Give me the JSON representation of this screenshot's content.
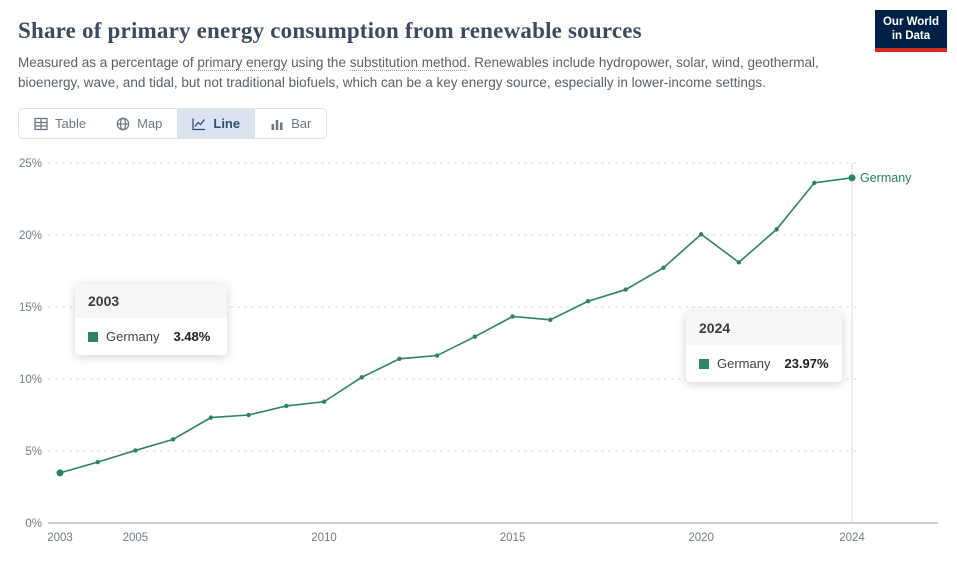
{
  "header": {
    "title": "Share of primary energy consumption from renewable sources",
    "subtitle": {
      "part1": "Measured as a percentage of ",
      "link1": "primary energy",
      "part2": " using the ",
      "link2": "substitution method",
      "part3": ". Renewables include hydropower, solar, wind, geothermal, bioenergy, wave, and tidal, but not traditional biofuels, which can be a key energy source, especially in lower-income settings."
    },
    "logo": {
      "line1": "Our World",
      "line2": "in Data",
      "bg_color": "#002147",
      "accent_color": "#d42b21"
    }
  },
  "tabs": {
    "items": [
      {
        "label": "Table",
        "icon": "table-icon",
        "active": false
      },
      {
        "label": "Map",
        "icon": "globe-icon",
        "active": false
      },
      {
        "label": "Line",
        "icon": "line-chart-icon",
        "active": true
      },
      {
        "label": "Bar",
        "icon": "bar-chart-icon",
        "active": false
      }
    ]
  },
  "chart_data": {
    "type": "line",
    "title": "Share of primary energy consumption from renewable sources",
    "xlabel": "",
    "ylabel": "",
    "xlim": [
      2003,
      2024
    ],
    "ylim": [
      0,
      25
    ],
    "x_ticks": [
      2003,
      2005,
      2010,
      2015,
      2020,
      2024
    ],
    "y_ticks": [
      0,
      5,
      10,
      15,
      20,
      25
    ],
    "y_tick_suffix": "%",
    "grid": "dashed horizontal",
    "legend_position": "end-of-line",
    "series": [
      {
        "name": "Germany",
        "color": "#2c8465",
        "x": [
          2003,
          2004,
          2005,
          2006,
          2007,
          2008,
          2009,
          2010,
          2011,
          2012,
          2013,
          2014,
          2015,
          2016,
          2017,
          2018,
          2019,
          2020,
          2021,
          2022,
          2023,
          2024
        ],
        "values": [
          3.48,
          4.23,
          5.04,
          5.81,
          7.32,
          7.5,
          8.13,
          8.42,
          10.12,
          11.4,
          11.63,
          12.94,
          14.34,
          14.11,
          15.4,
          16.21,
          17.72,
          20.05,
          18.1,
          20.39,
          23.62,
          23.97
        ]
      }
    ]
  },
  "tooltips": [
    {
      "year": "2003",
      "entity": "Germany",
      "value": "3.48%"
    },
    {
      "year": "2024",
      "entity": "Germany",
      "value": "23.97%"
    }
  ]
}
